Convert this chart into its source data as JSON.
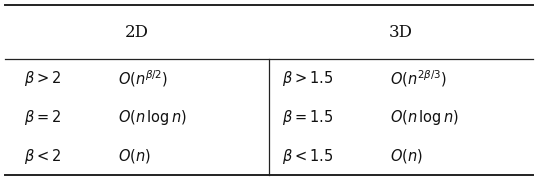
{
  "header_2d": "2D",
  "header_3d": "3D",
  "rows_2d": [
    [
      "$\\beta > 2$",
      "$O(n^{\\beta/2})$"
    ],
    [
      "$\\beta = 2$",
      "$O(n\\,\\log n)$"
    ],
    [
      "$\\beta < 2$",
      "$O(n)$"
    ]
  ],
  "rows_3d": [
    [
      "$\\beta > 1.5$",
      "$O(n^{2\\beta/3})$"
    ],
    [
      "$\\beta = 1.5$",
      "$O(n\\,\\log n)$"
    ],
    [
      "$\\beta < 1.5$",
      "$O(n)$"
    ]
  ],
  "text_color": "#111111",
  "line_color": "#222222",
  "header_fontsize": 12,
  "cell_fontsize": 10.5,
  "fig_width": 5.38,
  "fig_height": 1.79,
  "dpi": 100
}
